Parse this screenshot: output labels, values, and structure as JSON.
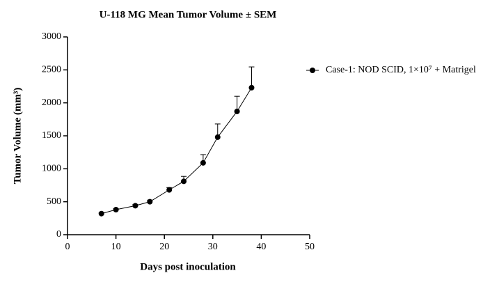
{
  "chart_data": {
    "type": "line",
    "title": "U-118 MG Mean Tumor Volume ± SEM",
    "x_label": "Days post inoculation",
    "y_label": "Tumor Volume (mm³)",
    "xlim": [
      0,
      50
    ],
    "xticks": [
      0,
      10,
      20,
      30,
      40,
      50
    ],
    "ylim": [
      0,
      3000
    ],
    "yticks": [
      0,
      500,
      1000,
      1500,
      2000,
      2500,
      3000
    ],
    "grid": false,
    "legend": "right",
    "x": [
      7,
      10,
      14,
      17,
      21,
      24,
      28,
      31,
      35,
      38
    ],
    "series": [
      {
        "name": "Case-1: NOD SCID, 1×10⁷ + Matrigel",
        "color": "#000000",
        "values": [
          320,
          380,
          440,
          500,
          680,
          810,
          1090,
          1480,
          1870,
          2230
        ],
        "errors": [
          10,
          15,
          20,
          25,
          35,
          75,
          125,
          200,
          230,
          315
        ]
      }
    ]
  }
}
